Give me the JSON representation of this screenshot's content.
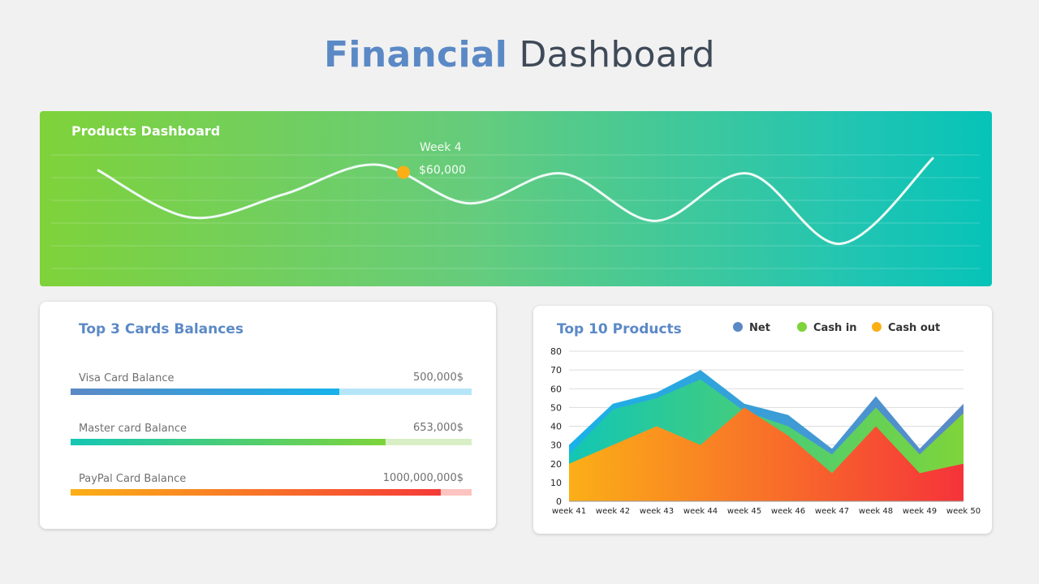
{
  "header": {
    "title_accent": "Financial",
    "title_rest": "Dashboard"
  },
  "colors": {
    "accent": "#5b89c6",
    "net": "#5b89c6",
    "cash_in": "#7ed43a",
    "cash_out": "#fbaf17"
  },
  "products_panel": {
    "title": "Products Dashboard",
    "tooltip": {
      "week": "Week 4",
      "value": "$60,000"
    }
  },
  "balances": {
    "title": "Top 3 Cards Balances",
    "items": [
      {
        "label": "Visa Card Balance",
        "value": "500,000$",
        "fill_fraction": 0.67,
        "gradient": [
          "#5b89c6",
          "#16b2ea"
        ],
        "track_color": "#b5e6f8"
      },
      {
        "label": "Master card Balance",
        "value": "653,000$",
        "fill_fraction": 0.785,
        "gradient": [
          "#14c6b4",
          "#7ed43a"
        ],
        "track_color": "#d8efc6"
      },
      {
        "label": "PayPal Card Balance",
        "value": "1000,000,000$",
        "fill_fraction": 0.923,
        "gradient": [
          "#fbaf17",
          "#f53a38"
        ],
        "track_color": "#fcc4c0"
      }
    ]
  },
  "products_chart_card": {
    "title": "Top 10 Products",
    "legend": [
      {
        "label": "Net",
        "color": "#5b89c6"
      },
      {
        "label": "Cash in",
        "color": "#7ed43a"
      },
      {
        "label": "Cash out",
        "color": "#fbaf17"
      }
    ]
  },
  "chart_data": [
    {
      "type": "line",
      "title": "Products Dashboard",
      "series": [
        {
          "values": [
            45,
            18,
            31,
            48,
            26,
            43,
            16,
            43,
            3,
            52
          ]
        }
      ],
      "highlight": {
        "label": "Week 4",
        "value_label": "$60,000"
      },
      "grid": true
    },
    {
      "type": "area",
      "title": "Top 10 Products",
      "categories": [
        "week 41",
        "week 42",
        "week 43",
        "week 44",
        "week 45",
        "week 46",
        "week 47",
        "week 48",
        "week 49",
        "week 50"
      ],
      "series": [
        {
          "name": "Net",
          "values": [
            30,
            52,
            58,
            70,
            52,
            46,
            28,
            56,
            28,
            52
          ]
        },
        {
          "name": "Cash in",
          "values": [
            25,
            49,
            55,
            65,
            48,
            40,
            25,
            50,
            25,
            47
          ]
        },
        {
          "name": "Cash out",
          "values": [
            20,
            30,
            40,
            30,
            50,
            35,
            15,
            40,
            15,
            20
          ]
        }
      ],
      "ylim": [
        0,
        80
      ],
      "yticks": [
        0,
        10,
        20,
        30,
        40,
        50,
        60,
        70,
        80
      ],
      "grid": true,
      "legend": "top"
    }
  ]
}
